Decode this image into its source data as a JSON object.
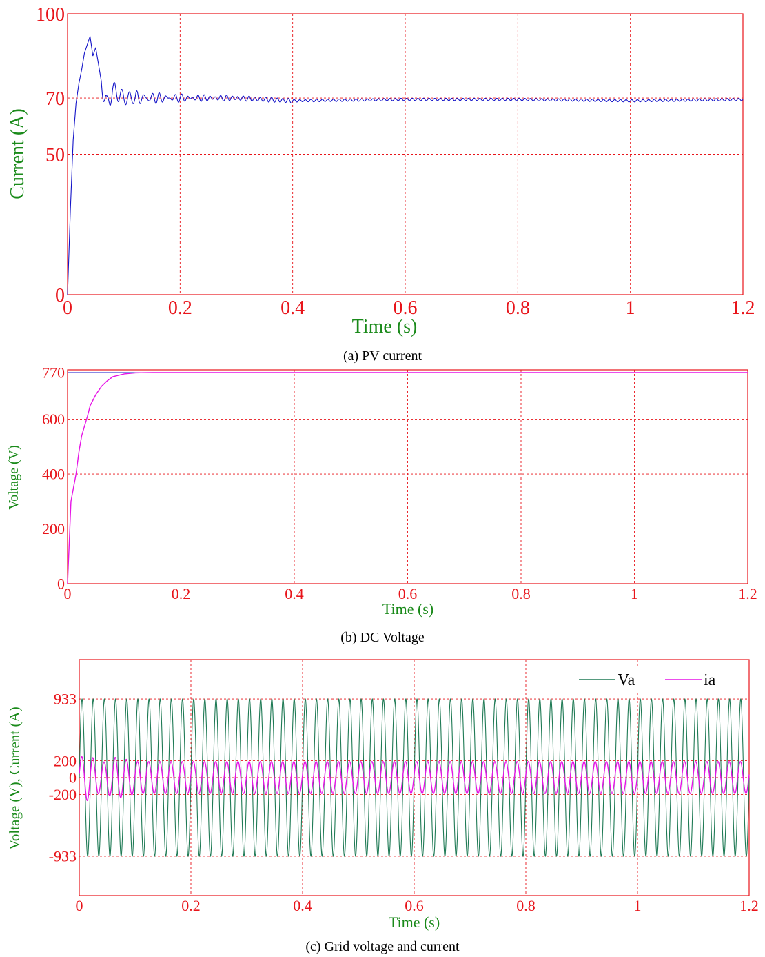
{
  "colors": {
    "axis": "#e8141a",
    "label": "#1a8a1a",
    "pv_current": "#1414c8",
    "dc_voltage": "#e614e6",
    "dc_ref": "#1414c8",
    "grid_voltage": "#1f7a55",
    "grid_current": "#e614e6"
  },
  "chart_data": [
    {
      "type": "line",
      "caption": "(a) PV current",
      "xlabel": "Time (s)",
      "ylabel": "Current (A)",
      "xlim": [
        0,
        1.2
      ],
      "ylim": [
        0,
        100
      ],
      "xticks": [
        "0",
        "0.2",
        "0.4",
        "0.6",
        "0.8",
        "1",
        "1.2"
      ],
      "yticks": [
        "0",
        "50",
        "70",
        "100"
      ],
      "grid": true,
      "series": [
        {
          "x": [
            0,
            0.005,
            0.01,
            0.015,
            0.02,
            0.025,
            0.03,
            0.04,
            0.045,
            0.05,
            0.06,
            0.07,
            0.08,
            0.1,
            0.15,
            0.2,
            0.3,
            0.4,
            0.6,
            0.8,
            1.0,
            1.2
          ],
          "y": [
            0,
            30,
            55,
            68,
            75,
            80,
            86,
            92,
            85,
            88,
            76,
            67,
            73,
            70,
            70,
            70,
            70,
            69,
            69.5,
            69.5,
            69,
            69.5
          ]
        }
      ]
    },
    {
      "type": "line",
      "caption": "(b) DC Voltage",
      "xlabel": "Time (s)",
      "ylabel": "Voltage (V)",
      "xlim": [
        0,
        1.2
      ],
      "ylim": [
        0,
        780
      ],
      "xticks": [
        "0",
        "0.2",
        "0.4",
        "0.6",
        "0.8",
        "1",
        "1.2"
      ],
      "yticks": [
        "0",
        "200",
        "400",
        "600",
        "770"
      ],
      "grid": true,
      "series": [
        {
          "x": [
            0,
            0.003,
            0.006,
            0.01,
            0.015,
            0.02,
            0.025,
            0.03,
            0.035,
            0.04,
            0.05,
            0.06,
            0.07,
            0.08,
            0.1,
            0.12,
            0.15,
            0.2,
            1.2
          ],
          "y": [
            0,
            150,
            300,
            345,
            400,
            480,
            540,
            575,
            610,
            650,
            690,
            720,
            740,
            755,
            765,
            769,
            770,
            770,
            770
          ]
        },
        {
          "x": [
            0,
            1.2
          ],
          "y": [
            770,
            770
          ]
        }
      ]
    },
    {
      "type": "line",
      "caption": "(c) Grid voltage and current",
      "xlabel": "Time (s)",
      "ylabel": "Voltage (V), Current (A)",
      "xlim": [
        0,
        1.2
      ],
      "ylim": [
        -1400,
        1400
      ],
      "xticks": [
        "0",
        "0.2",
        "0.4",
        "0.6",
        "0.8",
        "1",
        "1.2"
      ],
      "yticks": [
        "-933",
        "-200",
        "0",
        "200",
        "933"
      ],
      "grid": true,
      "legend": "top-right",
      "frequency_hz": 50,
      "series": [
        {
          "name": "Va",
          "amplitude": 933
        },
        {
          "name": "ia",
          "amplitude": 200
        }
      ]
    }
  ]
}
